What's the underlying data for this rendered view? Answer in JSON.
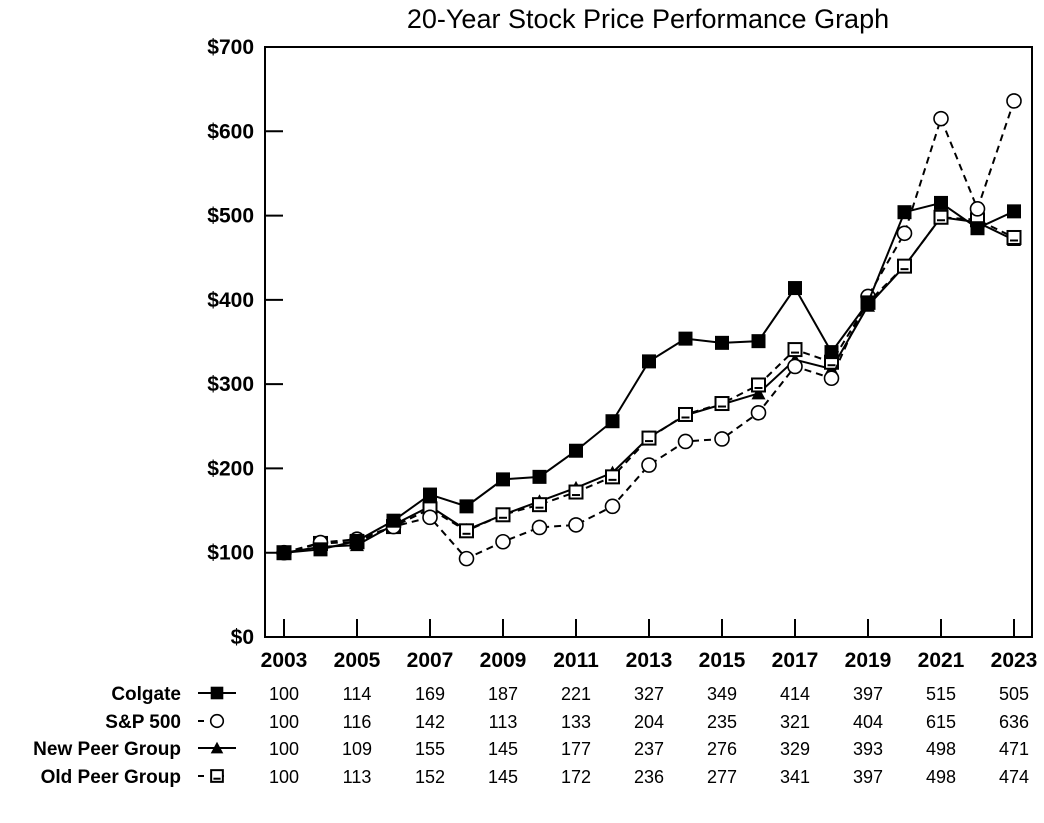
{
  "chart_data": {
    "type": "line",
    "title": "20-Year Stock Price Performance Graph",
    "xlabel": "",
    "ylabel": "",
    "ylim": [
      0,
      700
    ],
    "xlim": [
      2003,
      2023
    ],
    "yticks": [
      0,
      100,
      200,
      300,
      400,
      500,
      600,
      700
    ],
    "ytick_labels": [
      "$0",
      "$100",
      "$200",
      "$300",
      "$400",
      "$500",
      "$600",
      "$700"
    ],
    "xticks": [
      2003,
      2005,
      2007,
      2009,
      2011,
      2013,
      2015,
      2017,
      2019,
      2021,
      2023
    ],
    "xtick_labels": [
      "2003",
      "2005",
      "2007",
      "2009",
      "2011",
      "2013",
      "2015",
      "2017",
      "2019",
      "2021",
      "2023"
    ],
    "grid": false,
    "x": [
      2003,
      2004,
      2005,
      2006,
      2007,
      2008,
      2009,
      2010,
      2011,
      2012,
      2013,
      2014,
      2015,
      2016,
      2017,
      2018,
      2019,
      2020,
      2021,
      2022,
      2023
    ],
    "series": [
      {
        "name": "Colgate",
        "marker": "filled-square",
        "line": "solid",
        "values": [
          100,
          104,
          114,
          138,
          169,
          155,
          187,
          190,
          221,
          256,
          327,
          354,
          349,
          351,
          414,
          338,
          397,
          504,
          515,
          485,
          505
        ]
      },
      {
        "name": "S&P 500",
        "marker": "open-circle",
        "line": "dashed",
        "values": [
          100,
          112,
          116,
          131,
          142,
          93,
          113,
          130,
          133,
          155,
          204,
          232,
          235,
          266,
          321,
          307,
          404,
          479,
          615,
          508,
          636
        ]
      },
      {
        "name": "New Peer Group",
        "marker": "filled-triangle",
        "line": "solid",
        "values": [
          100,
          107,
          109,
          133,
          155,
          127,
          145,
          161,
          177,
          195,
          237,
          263,
          276,
          289,
          329,
          318,
          393,
          440,
          498,
          492,
          471
        ]
      },
      {
        "name": "Old Peer Group",
        "marker": "open-square",
        "line": "dashed",
        "values": [
          100,
          111,
          113,
          131,
          152,
          126,
          145,
          157,
          172,
          190,
          236,
          264,
          277,
          299,
          341,
          326,
          397,
          440,
          498,
          495,
          474
        ]
      }
    ],
    "table": {
      "years": [
        2003,
        2005,
        2007,
        2009,
        2011,
        2013,
        2015,
        2017,
        2019,
        2021,
        2023
      ],
      "rows": [
        {
          "label": "Colgate",
          "values": [
            "100",
            "114",
            "169",
            "187",
            "221",
            "327",
            "349",
            "414",
            "397",
            "515",
            "505"
          ]
        },
        {
          "label": "S&P 500",
          "values": [
            "100",
            "116",
            "142",
            "113",
            "133",
            "204",
            "235",
            "321",
            "404",
            "615",
            "636"
          ]
        },
        {
          "label": "New Peer Group",
          "values": [
            "100",
            "109",
            "155",
            "145",
            "177",
            "237",
            "276",
            "329",
            "393",
            "498",
            "471"
          ]
        },
        {
          "label": "Old Peer Group",
          "values": [
            "100",
            "113",
            "152",
            "145",
            "172",
            "236",
            "277",
            "341",
            "397",
            "498",
            "474"
          ]
        }
      ]
    }
  }
}
